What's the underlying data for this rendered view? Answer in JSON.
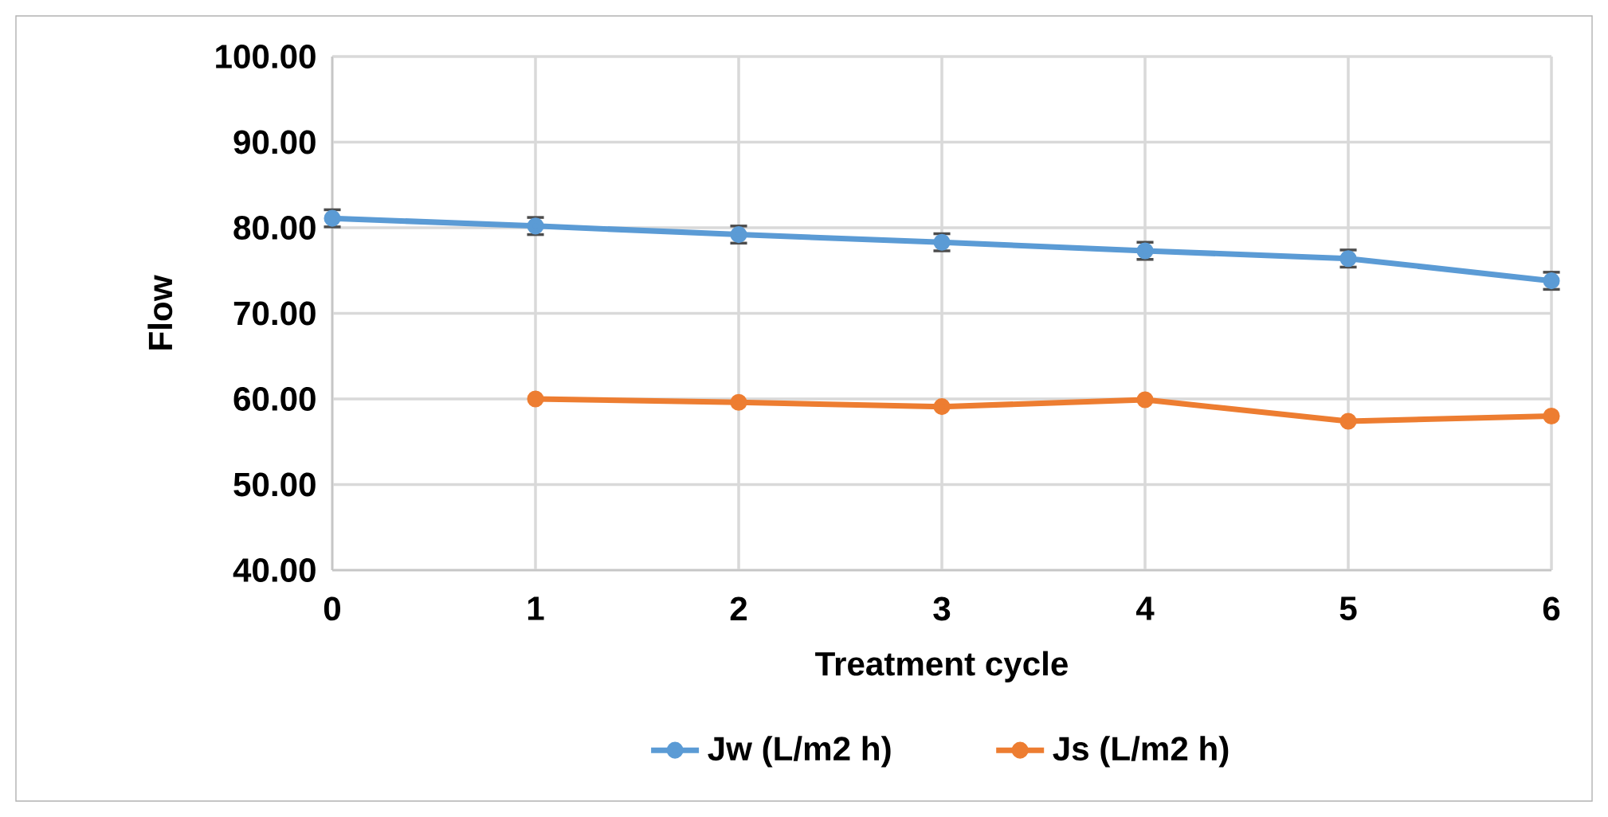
{
  "chart_data": {
    "type": "line",
    "xlabel": "Treatment cycle",
    "ylabel": "Flow",
    "x": [
      0,
      1,
      2,
      3,
      4,
      5,
      6
    ],
    "series": [
      {
        "name": "Jw (L/m2 h)",
        "color": "#5b9bd5",
        "values": [
          81.1,
          80.2,
          79.2,
          78.3,
          77.3,
          76.4,
          73.8
        ],
        "errors": [
          1,
          1,
          1,
          1,
          1,
          1,
          1
        ]
      },
      {
        "name": "Js (L/m2 h)",
        "color": "#ed7d31",
        "values": [
          null,
          60.0,
          59.6,
          59.1,
          59.9,
          57.4,
          58.0
        ]
      }
    ],
    "xlim": [
      0,
      6
    ],
    "xticks": [
      0,
      1,
      2,
      3,
      4,
      5,
      6
    ],
    "ylim": [
      40,
      100
    ],
    "yticks": [
      {
        "value": 40,
        "label": "40.00"
      },
      {
        "value": 50,
        "label": "50.00"
      },
      {
        "value": 60,
        "label": "60.00"
      },
      {
        "value": 70,
        "label": "70.00"
      },
      {
        "value": 80,
        "label": "80.00"
      },
      {
        "value": 90,
        "label": "90.00"
      },
      {
        "value": 100,
        "label": "100.00"
      }
    ],
    "grid": true,
    "legend": "bottom",
    "marker": "circle",
    "line_style": "solid"
  }
}
